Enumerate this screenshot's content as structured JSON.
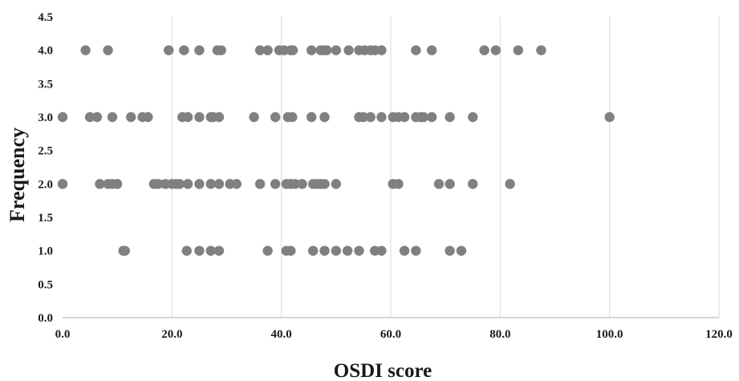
{
  "chart_data": {
    "type": "scatter",
    "xlabel": "OSDI score",
    "ylabel": "Frequency",
    "xlim": [
      0,
      120
    ],
    "ylim": [
      0,
      4.5
    ],
    "x_ticks": [
      "0.0",
      "20.0",
      "40.0",
      "60.0",
      "80.0",
      "100.0",
      "120.0"
    ],
    "y_ticks": [
      "0.0",
      "0.5",
      "1.0",
      "1.5",
      "2.0",
      "2.5",
      "3.0",
      "3.5",
      "4.0",
      "4.5"
    ],
    "grid": "vertical",
    "marker_color": "#808080",
    "points": [
      {
        "x": 4.2,
        "y": 4
      },
      {
        "x": 8.3,
        "y": 4
      },
      {
        "x": 19.4,
        "y": 4
      },
      {
        "x": 22.2,
        "y": 4
      },
      {
        "x": 25.0,
        "y": 4
      },
      {
        "x": 28.3,
        "y": 4
      },
      {
        "x": 29.0,
        "y": 4
      },
      {
        "x": 36.1,
        "y": 4
      },
      {
        "x": 37.5,
        "y": 4
      },
      {
        "x": 39.6,
        "y": 4
      },
      {
        "x": 40.5,
        "y": 4
      },
      {
        "x": 41.7,
        "y": 4
      },
      {
        "x": 42.1,
        "y": 4
      },
      {
        "x": 45.5,
        "y": 4
      },
      {
        "x": 47.2,
        "y": 4
      },
      {
        "x": 47.9,
        "y": 4
      },
      {
        "x": 48.3,
        "y": 4
      },
      {
        "x": 50.0,
        "y": 4
      },
      {
        "x": 52.3,
        "y": 4
      },
      {
        "x": 54.2,
        "y": 4
      },
      {
        "x": 55.2,
        "y": 4
      },
      {
        "x": 56.3,
        "y": 4
      },
      {
        "x": 57.1,
        "y": 4
      },
      {
        "x": 58.3,
        "y": 4
      },
      {
        "x": 64.6,
        "y": 4
      },
      {
        "x": 67.5,
        "y": 4
      },
      {
        "x": 77.1,
        "y": 4
      },
      {
        "x": 79.2,
        "y": 4
      },
      {
        "x": 83.3,
        "y": 4
      },
      {
        "x": 87.5,
        "y": 4
      },
      {
        "x": 0.0,
        "y": 3
      },
      {
        "x": 5.0,
        "y": 3
      },
      {
        "x": 6.3,
        "y": 3
      },
      {
        "x": 9.1,
        "y": 3
      },
      {
        "x": 12.5,
        "y": 3
      },
      {
        "x": 14.6,
        "y": 3
      },
      {
        "x": 15.6,
        "y": 3
      },
      {
        "x": 21.9,
        "y": 3
      },
      {
        "x": 22.9,
        "y": 3
      },
      {
        "x": 25.0,
        "y": 3
      },
      {
        "x": 27.1,
        "y": 3
      },
      {
        "x": 27.5,
        "y": 3
      },
      {
        "x": 28.6,
        "y": 3
      },
      {
        "x": 35.0,
        "y": 3
      },
      {
        "x": 38.9,
        "y": 3
      },
      {
        "x": 41.2,
        "y": 3
      },
      {
        "x": 42.0,
        "y": 3
      },
      {
        "x": 45.5,
        "y": 3
      },
      {
        "x": 47.9,
        "y": 3
      },
      {
        "x": 54.2,
        "y": 3
      },
      {
        "x": 55.0,
        "y": 3
      },
      {
        "x": 56.3,
        "y": 3
      },
      {
        "x": 58.3,
        "y": 3
      },
      {
        "x": 60.4,
        "y": 3
      },
      {
        "x": 61.4,
        "y": 3
      },
      {
        "x": 62.5,
        "y": 3
      },
      {
        "x": 64.6,
        "y": 3
      },
      {
        "x": 65.5,
        "y": 3
      },
      {
        "x": 66.0,
        "y": 3
      },
      {
        "x": 67.5,
        "y": 3
      },
      {
        "x": 70.8,
        "y": 3
      },
      {
        "x": 75.0,
        "y": 3
      },
      {
        "x": 100.0,
        "y": 3
      },
      {
        "x": 0.0,
        "y": 2
      },
      {
        "x": 6.8,
        "y": 2
      },
      {
        "x": 8.3,
        "y": 2
      },
      {
        "x": 9.1,
        "y": 2
      },
      {
        "x": 10.0,
        "y": 2
      },
      {
        "x": 16.7,
        "y": 2
      },
      {
        "x": 17.5,
        "y": 2
      },
      {
        "x": 18.8,
        "y": 2
      },
      {
        "x": 20.0,
        "y": 2
      },
      {
        "x": 20.8,
        "y": 2
      },
      {
        "x": 21.4,
        "y": 2
      },
      {
        "x": 22.9,
        "y": 2
      },
      {
        "x": 25.0,
        "y": 2
      },
      {
        "x": 27.1,
        "y": 2
      },
      {
        "x": 28.6,
        "y": 2
      },
      {
        "x": 30.6,
        "y": 2
      },
      {
        "x": 31.8,
        "y": 2
      },
      {
        "x": 36.1,
        "y": 2
      },
      {
        "x": 38.9,
        "y": 2
      },
      {
        "x": 40.9,
        "y": 2
      },
      {
        "x": 41.7,
        "y": 2
      },
      {
        "x": 42.5,
        "y": 2
      },
      {
        "x": 43.8,
        "y": 2
      },
      {
        "x": 45.8,
        "y": 2
      },
      {
        "x": 46.5,
        "y": 2
      },
      {
        "x": 47.2,
        "y": 2
      },
      {
        "x": 47.9,
        "y": 2
      },
      {
        "x": 50.0,
        "y": 2
      },
      {
        "x": 60.4,
        "y": 2
      },
      {
        "x": 61.4,
        "y": 2
      },
      {
        "x": 68.8,
        "y": 2
      },
      {
        "x": 70.8,
        "y": 2
      },
      {
        "x": 75.0,
        "y": 2
      },
      {
        "x": 81.8,
        "y": 2
      },
      {
        "x": 11.1,
        "y": 1
      },
      {
        "x": 11.4,
        "y": 1
      },
      {
        "x": 22.7,
        "y": 1
      },
      {
        "x": 25.0,
        "y": 1
      },
      {
        "x": 27.1,
        "y": 1
      },
      {
        "x": 28.6,
        "y": 1
      },
      {
        "x": 37.5,
        "y": 1
      },
      {
        "x": 40.9,
        "y": 1
      },
      {
        "x": 41.7,
        "y": 1
      },
      {
        "x": 45.8,
        "y": 1
      },
      {
        "x": 47.9,
        "y": 1
      },
      {
        "x": 50.0,
        "y": 1
      },
      {
        "x": 52.1,
        "y": 1
      },
      {
        "x": 54.2,
        "y": 1
      },
      {
        "x": 57.1,
        "y": 1
      },
      {
        "x": 58.3,
        "y": 1
      },
      {
        "x": 62.5,
        "y": 1
      },
      {
        "x": 64.6,
        "y": 1
      },
      {
        "x": 70.8,
        "y": 1
      },
      {
        "x": 72.9,
        "y": 1
      }
    ]
  }
}
